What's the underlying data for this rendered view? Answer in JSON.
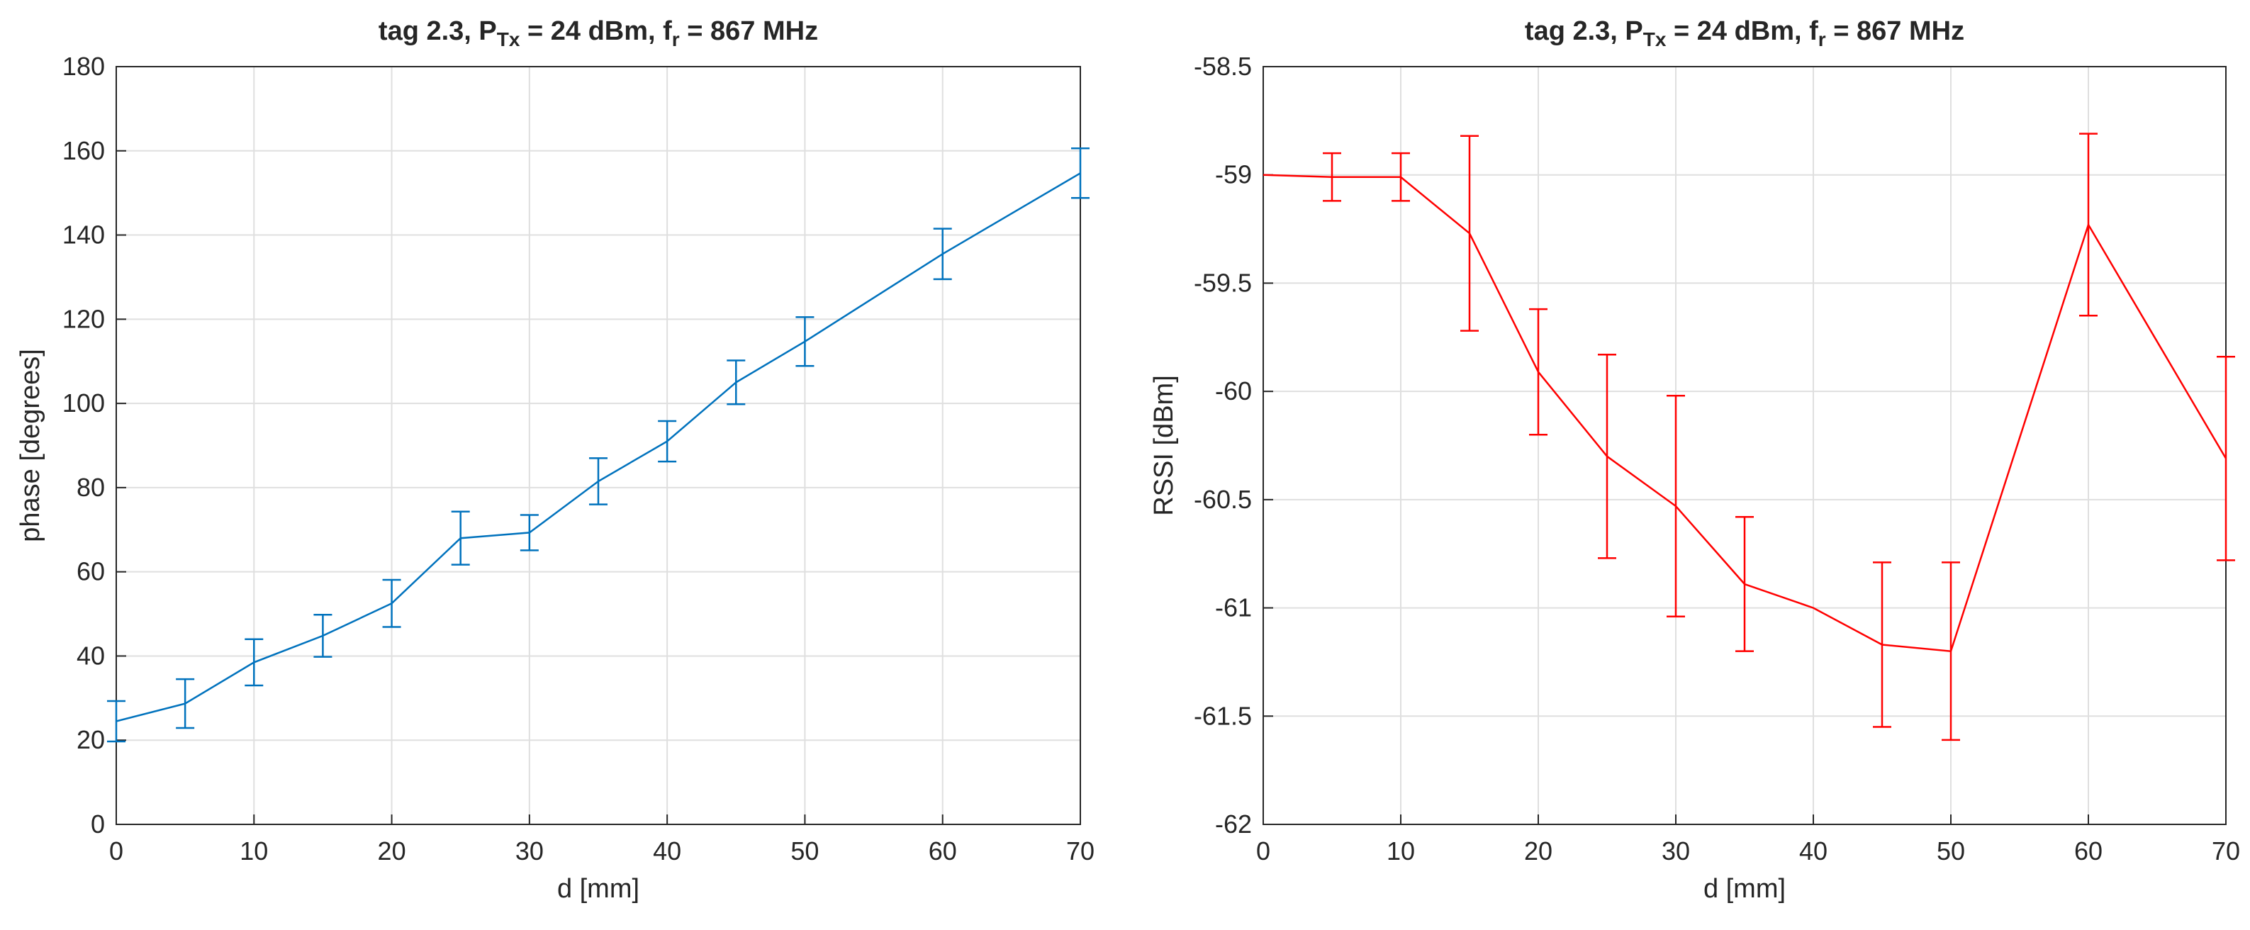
{
  "chart_data": [
    {
      "type": "line",
      "title_prefix": "tag 2.3, P",
      "title_sub1": "Tx",
      "title_mid": " = 24 dBm, f",
      "title_sub2": "r",
      "title_suffix": " = 867 MHz",
      "xlabel": "d [mm]",
      "ylabel": "phase [degrees]",
      "xlim": [
        0,
        70
      ],
      "ylim": [
        0,
        180
      ],
      "xticks": [
        0,
        10,
        20,
        30,
        40,
        50,
        60,
        70
      ],
      "yticks": [
        0,
        20,
        40,
        60,
        80,
        100,
        120,
        140,
        160,
        180
      ],
      "grid": true,
      "color": "#0072BD",
      "series": [
        {
          "x": [
            0,
            5,
            10,
            15,
            20,
            25,
            30,
            35,
            40,
            45,
            50,
            60,
            70
          ],
          "y": [
            24.5,
            28.7,
            38.5,
            44.8,
            52.5,
            68.0,
            69.3,
            81.5,
            91.0,
            105.0,
            114.7,
            135.5,
            154.7
          ],
          "err": [
            4.8,
            5.8,
            5.5,
            5.0,
            5.6,
            6.3,
            4.2,
            5.5,
            4.8,
            5.2,
            5.8,
            6.0,
            5.9
          ]
        }
      ]
    },
    {
      "type": "line",
      "title_prefix": "tag 2.3, P",
      "title_sub1": "Tx",
      "title_mid": " = 24 dBm, f",
      "title_sub2": "r",
      "title_suffix": " = 867 MHz",
      "xlabel": "d [mm]",
      "ylabel": "RSSI [dBm]",
      "xlim": [
        0,
        70
      ],
      "ylim": [
        -62,
        -58.5
      ],
      "xticks": [
        0,
        10,
        20,
        30,
        40,
        50,
        60,
        70
      ],
      "yticks": [
        -62,
        -61.5,
        -61,
        -60.5,
        -60,
        -59.5,
        -59,
        -58.5
      ],
      "grid": true,
      "color": "#FF0000",
      "series": [
        {
          "x": [
            0,
            5,
            10,
            15,
            20,
            25,
            30,
            35,
            40,
            45,
            50,
            60,
            70
          ],
          "y": [
            -59.0,
            -59.01,
            -59.01,
            -59.27,
            -59.91,
            -60.3,
            -60.53,
            -60.89,
            -61.0,
            -61.17,
            -61.2,
            -59.23,
            -60.31
          ],
          "err": [
            0.0,
            0.11,
            0.11,
            0.45,
            0.29,
            0.47,
            0.51,
            0.31,
            0.0,
            0.38,
            0.41,
            0.42,
            0.47
          ]
        }
      ]
    }
  ]
}
